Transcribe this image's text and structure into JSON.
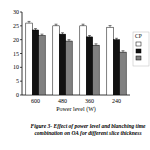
{
  "chart_data": {
    "type": "bar",
    "title": "Figure 3- Effect of power level and blanching time combination on OA for different slice thickness",
    "x_label": "Power level (W)",
    "legend_title": "CP",
    "categories": [
      "600",
      "480",
      "360",
      "240"
    ],
    "series": [
      {
        "color": "#ffffff",
        "values": [
          26,
          25,
          25,
          24.5
        ],
        "errors": [
          0.6,
          0.6,
          0.6,
          0.6
        ]
      },
      {
        "color": "#111111",
        "values": [
          23.5,
          22,
          21,
          20
        ],
        "errors": [
          0.5,
          0.5,
          0.5,
          0.5
        ]
      },
      {
        "color": "#808080",
        "values": [
          21.5,
          19.5,
          18,
          15.5
        ],
        "errors": [
          0.5,
          0.5,
          0.5,
          0.5
        ]
      }
    ],
    "ylim": [
      0,
      30
    ],
    "yticks": [
      0,
      5,
      10,
      15,
      20,
      25,
      30
    ],
    "grid": false,
    "legend": "right"
  }
}
